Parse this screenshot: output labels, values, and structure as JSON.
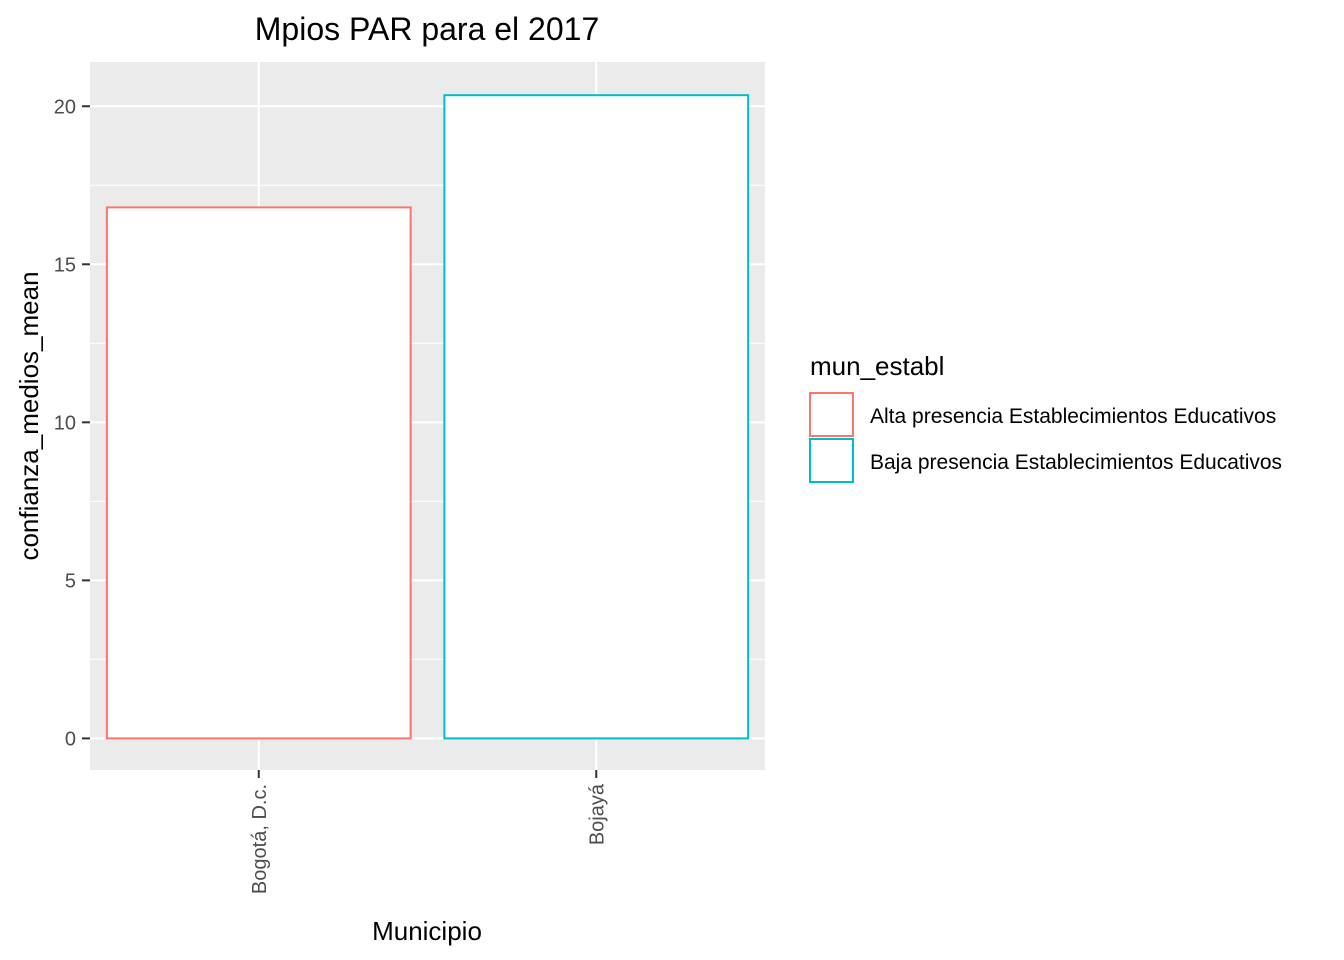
{
  "chart_data": {
    "type": "bar",
    "title": "Mpios PAR para el 2017",
    "xlabel": "Municipio",
    "ylabel": "confianza_medios_mean",
    "categories": [
      "Bogotá, D.c.",
      "Bojayá"
    ],
    "values": [
      16.8,
      20.35
    ],
    "bar_groups": [
      "Alta presencia Establecimientos Educativos",
      "Baja presencia Establecimientos Educativos"
    ],
    "ylim": [
      -1,
      21.4
    ],
    "yticks": [
      0,
      5,
      10,
      15,
      20
    ],
    "ytick_labels": [
      "0",
      "5",
      "10",
      "15",
      "20"
    ],
    "grid": true,
    "legend": {
      "title": "mun_establ",
      "position": "right",
      "items": [
        {
          "label": "Alta presencia Establecimientos Educativos",
          "color": "#F8766D"
        },
        {
          "label": "Baja presencia Establecimientos Educativos",
          "color": "#00BFC4"
        }
      ]
    },
    "colors": {
      "panel_background": "#EBEBEB",
      "grid": "#FFFFFF",
      "bar_fill": "#FFFFFF"
    }
  }
}
